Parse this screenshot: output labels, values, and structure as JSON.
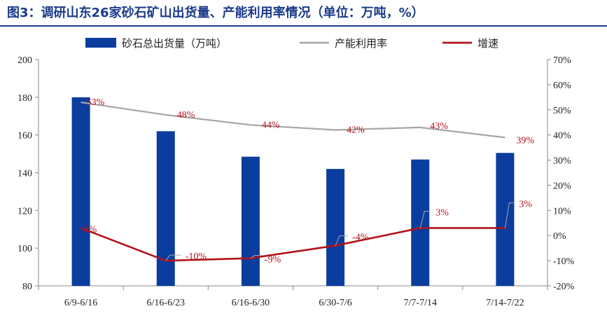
{
  "title": "图3：调研山东26家砂石矿山出货量、产能利用率情况（单位：万吨，%）",
  "colors": {
    "bar": "#0b3d9e",
    "utilization": "#a6a6a6",
    "growth": "#b3121b",
    "title": "#1a3a8a",
    "label": "#b3121b"
  },
  "chart_data": {
    "type": "bar",
    "categories": [
      "6/9-6/16",
      "6/16-6/23",
      "6/16-6/30",
      "6/30-7/6",
      "7/7-7/14",
      "7/14-7/22"
    ],
    "series": [
      {
        "name": "砂石总出货量（万吨）",
        "type": "bar",
        "axis": "left",
        "values": [
          180,
          162,
          148.5,
          142,
          147,
          150.5
        ]
      },
      {
        "name": "产能利用率",
        "type": "line",
        "axis": "right",
        "values": [
          53,
          48,
          44,
          42,
          43,
          39
        ],
        "labels": [
          "53%",
          "48%",
          "44%",
          "42%",
          "43%",
          "39%"
        ]
      },
      {
        "name": "增速",
        "type": "line",
        "axis": "right",
        "values": [
          3,
          -10,
          -9,
          -4,
          3,
          3
        ],
        "labels": [
          "3%",
          "-10%",
          "-9%",
          "-4%",
          "3%",
          "3%"
        ]
      }
    ],
    "left_axis": {
      "ylim": [
        80,
        200
      ],
      "ticks": [
        "80",
        "100",
        "120",
        "140",
        "160",
        "180",
        "200"
      ]
    },
    "right_axis": {
      "ylim": [
        -20,
        70
      ],
      "ticks": [
        "-20%",
        "-10%",
        "0%",
        "10%",
        "20%",
        "30%",
        "40%",
        "50%",
        "60%",
        "70%"
      ]
    },
    "legend_position": "top"
  }
}
